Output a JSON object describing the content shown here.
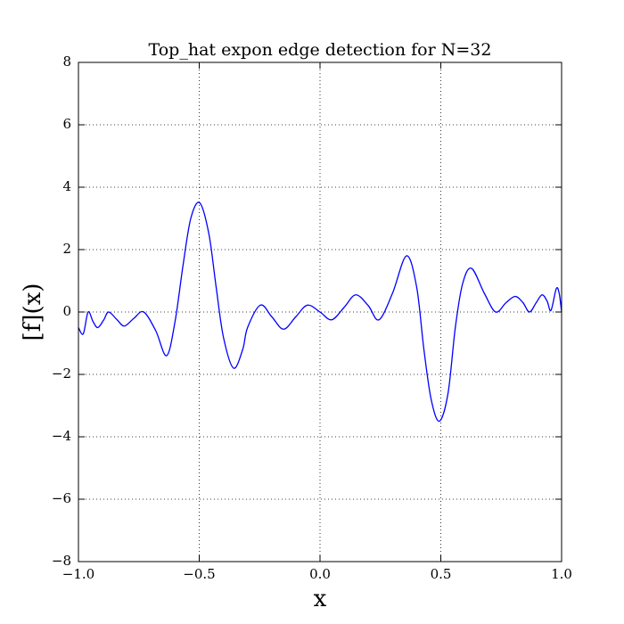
{
  "chart_data": {
    "type": "line",
    "title": "Top_hat expon edge detection for N=32",
    "xlabel": "x",
    "ylabel": "[f](x)",
    "xlim": [
      -1,
      1
    ],
    "ylim": [
      -8,
      8
    ],
    "xticks": [
      {
        "value": -1,
        "label": "−1.0"
      },
      {
        "value": -0.5,
        "label": "−0.5"
      },
      {
        "value": 0,
        "label": "0.0"
      },
      {
        "value": 0.5,
        "label": "0.5"
      },
      {
        "value": 1,
        "label": "1.0"
      }
    ],
    "yticks": [
      {
        "value": -8,
        "label": "−8"
      },
      {
        "value": -6,
        "label": "−6"
      },
      {
        "value": -4,
        "label": "−4"
      },
      {
        "value": -2,
        "label": "−2"
      },
      0,
      2,
      4,
      6,
      8
    ],
    "grid": true,
    "series": [
      {
        "color": "#0000ff",
        "x": [
          -1.0,
          -0.98,
          -0.96,
          -0.94,
          -0.92,
          -0.895,
          -0.875,
          -0.84,
          -0.81,
          -0.77,
          -0.73,
          -0.68,
          -0.635,
          -0.6,
          -0.567,
          -0.535,
          -0.498,
          -0.46,
          -0.43,
          -0.4,
          -0.358,
          -0.32,
          -0.3,
          -0.247,
          -0.2,
          -0.151,
          -0.1,
          -0.052,
          0.0,
          0.048,
          0.1,
          0.148,
          0.2,
          0.244,
          0.3,
          0.358,
          0.4,
          0.43,
          0.46,
          0.494,
          0.53,
          0.56,
          0.59,
          0.627,
          0.68,
          0.727,
          0.77,
          0.808,
          0.84,
          0.867,
          0.895,
          0.919,
          0.94,
          0.956,
          0.978,
          0.99,
          1.0
        ],
        "values": [
          -0.5,
          -0.7,
          0.0,
          -0.3,
          -0.5,
          -0.25,
          0.0,
          -0.25,
          -0.45,
          -0.2,
          0.0,
          -0.6,
          -1.4,
          -0.3,
          1.5,
          3.0,
          3.5,
          2.5,
          0.8,
          -0.8,
          -1.8,
          -1.2,
          -0.5,
          0.22,
          -0.15,
          -0.55,
          -0.15,
          0.22,
          0.0,
          -0.25,
          0.15,
          0.55,
          0.2,
          -0.25,
          0.6,
          1.8,
          0.8,
          -1.2,
          -2.8,
          -3.5,
          -2.6,
          -0.5,
          0.9,
          1.4,
          0.6,
          0.0,
          0.3,
          0.5,
          0.3,
          0.0,
          0.3,
          0.55,
          0.35,
          0.05,
          0.75,
          0.6,
          0.0
        ]
      }
    ]
  }
}
